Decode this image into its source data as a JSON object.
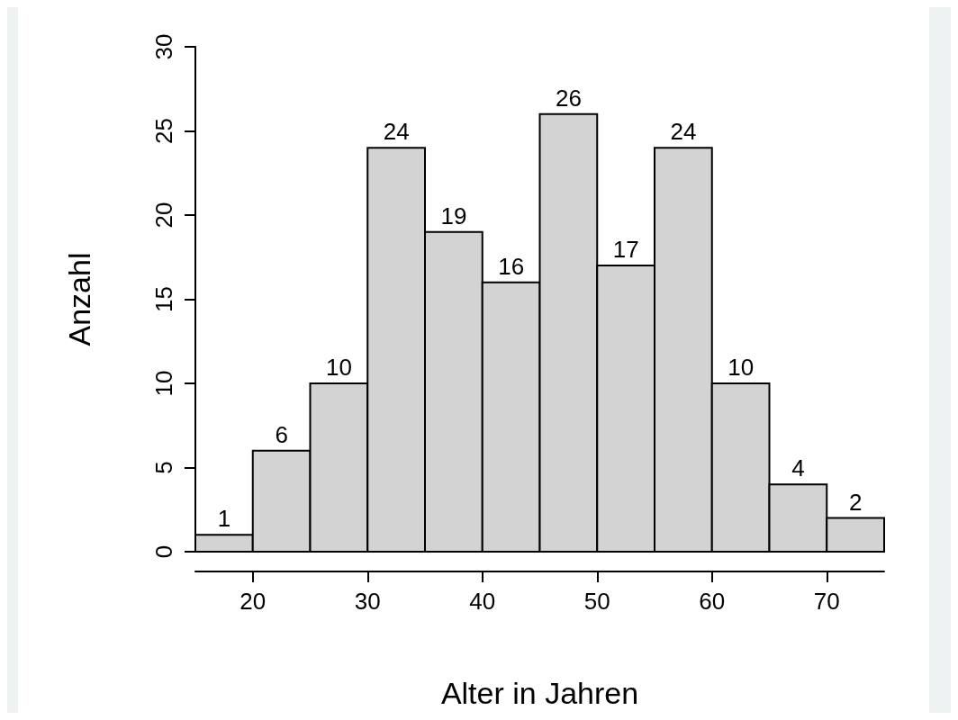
{
  "chart_data": {
    "type": "histogram",
    "xlabel": "Alter in Jahren",
    "ylabel": "Anzahl",
    "bins": [
      15,
      20,
      25,
      30,
      35,
      40,
      45,
      50,
      55,
      60,
      65,
      70,
      75
    ],
    "values": [
      1,
      6,
      10,
      24,
      19,
      16,
      26,
      17,
      24,
      10,
      4,
      2
    ],
    "color": "#d3d3d3",
    "xlim": [
      15,
      75
    ],
    "xticks": [
      20,
      30,
      40,
      50,
      60,
      70
    ],
    "ylim": [
      0,
      30
    ],
    "yticks": [
      0,
      5,
      10,
      15,
      20,
      25,
      30
    ],
    "grid": false,
    "data_labels": true
  }
}
